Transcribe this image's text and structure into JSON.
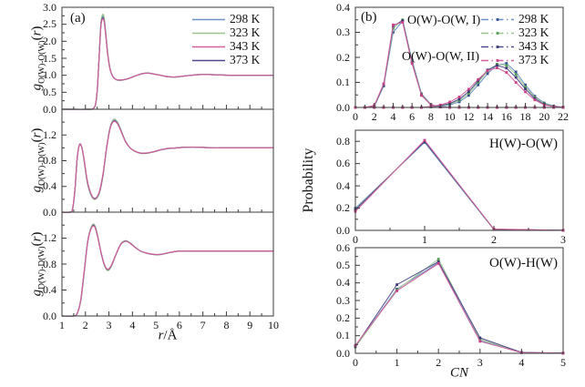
{
  "chart_data": [
    {
      "id": "a_top_gOO",
      "type": "line",
      "panel_label": "(a)",
      "ylabel": "g_O(W)-O(W)(r)",
      "ylabel_parts": {
        "sym": "g",
        "sub": "O(W)-O(W)",
        "open": "(",
        "var": "r",
        "close": ")"
      },
      "xlim": [
        1,
        10
      ],
      "frame_ylim": [
        0,
        3
      ],
      "x_ticks": [
        1,
        2,
        3,
        4,
        5,
        6,
        7,
        8,
        9,
        10
      ],
      "x_minor_step": 0.5,
      "x_ticks_labeled": false,
      "y_ticks": [
        "0.0",
        "0.5",
        "1.0",
        "1.5",
        "2.0",
        "2.5",
        "3.0"
      ],
      "y_minor_step": 0.25,
      "legend": {
        "entries": [
          {
            "label": "298 K",
            "color": "#6d94c4"
          },
          {
            "label": "323 K",
            "color": "#9cc48e"
          },
          {
            "label": "343 K",
            "color": "#d2609c"
          },
          {
            "label": "373 K",
            "color": "#4f4a8e"
          }
        ]
      },
      "overlapping_series": [
        "298 K",
        "323 K",
        "343 K",
        "373 K"
      ],
      "draw": [
        {
          "color": "#6d94c4",
          "amp": 0.05
        },
        {
          "color": "#9cc48e",
          "amp": 0.08
        },
        {
          "color": "#4f4a8e",
          "amp": 0.02
        },
        {
          "color": "#d2609c",
          "amp": 0
        }
      ],
      "x": [
        1.0,
        2.2,
        2.32,
        2.42,
        2.5,
        2.58,
        2.66,
        2.74,
        2.8,
        2.86,
        2.94,
        3.04,
        3.16,
        3.3,
        3.45,
        3.6,
        3.8,
        4.0,
        4.2,
        4.45,
        4.7,
        4.95,
        5.2,
        5.5,
        5.8,
        6.1,
        6.5,
        6.9,
        7.3,
        7.7,
        8.2,
        8.8,
        9.4,
        10
      ],
      "y": [
        0,
        0,
        0.02,
        0.12,
        0.55,
        1.5,
        2.45,
        2.66,
        2.55,
        2.2,
        1.65,
        1.2,
        0.97,
        0.88,
        0.86,
        0.87,
        0.9,
        0.95,
        1.0,
        1.05,
        1.06,
        1.03,
        1.0,
        0.96,
        0.95,
        0.97,
        1.0,
        1.02,
        1.02,
        1.01,
        1.0,
        1.0,
        1.0,
        1.0
      ]
    },
    {
      "id": "a_mid_gOD",
      "type": "line",
      "ylabel": "g_O(W)-D(W)(r)",
      "ylabel_parts": {
        "sym": "g",
        "sub": "O(W)-D(W)",
        "open": "(",
        "var": "r",
        "close": ")"
      },
      "xlim": [
        1,
        10
      ],
      "frame_ylim": [
        0,
        1.6
      ],
      "x_ticks": [
        1,
        2,
        3,
        4,
        5,
        6,
        7,
        8,
        9,
        10
      ],
      "x_minor_step": 0.5,
      "x_ticks_labeled": false,
      "y_ticks": [
        "0.0",
        "0.4",
        "0.8",
        "1.2"
      ],
      "y_minor_step": 0.2,
      "overlapping_series": [
        "298 K",
        "323 K",
        "343 K",
        "373 K"
      ],
      "draw": [
        {
          "color": "#6d94c4",
          "amp": 0.05
        },
        {
          "color": "#9cc48e",
          "amp": 0.08
        },
        {
          "color": "#4f4a8e",
          "amp": 0.02
        },
        {
          "color": "#d2609c",
          "amp": 0
        }
      ],
      "x": [
        1.0,
        1.35,
        1.45,
        1.55,
        1.65,
        1.75,
        1.85,
        1.95,
        2.05,
        2.15,
        2.3,
        2.45,
        2.6,
        2.75,
        2.9,
        3.05,
        3.2,
        3.35,
        3.5,
        3.7,
        3.9,
        4.1,
        4.35,
        4.6,
        4.9,
        5.2,
        5.5,
        5.9,
        6.3,
        6.8,
        7.4,
        8.0,
        8.8,
        9.4,
        10
      ],
      "y": [
        0,
        0,
        0.05,
        0.35,
        0.85,
        1.05,
        1.0,
        0.8,
        0.55,
        0.38,
        0.24,
        0.22,
        0.33,
        0.6,
        1.0,
        1.3,
        1.41,
        1.38,
        1.27,
        1.1,
        1.0,
        0.95,
        0.92,
        0.92,
        0.94,
        0.97,
        0.99,
        1.0,
        1.01,
        1.01,
        1.0,
        1.0,
        1.0,
        1.0,
        1.0
      ]
    },
    {
      "id": "a_bot_gDD",
      "type": "line",
      "ylabel": "g_D(W)-D(W)(r)",
      "ylabel_parts": {
        "sym": "g",
        "sub": "D(W)-D(W)",
        "open": "(",
        "var": "r",
        "close": ")"
      },
      "xlabel": "r/Å",
      "xlabel_var": "r",
      "xlabel_unit": "/Å",
      "xlim": [
        1,
        10
      ],
      "frame_ylim": [
        0,
        1.6
      ],
      "x_ticks": [
        1,
        2,
        3,
        4,
        5,
        6,
        7,
        8,
        9,
        10
      ],
      "x_minor_step": 0.5,
      "x_ticks_labeled": true,
      "y_ticks": [
        "0.0",
        "0.4",
        "0.8",
        "1.2"
      ],
      "y_minor_step": 0.2,
      "overlapping_series": [
        "298 K",
        "323 K",
        "343 K",
        "373 K"
      ],
      "draw": [
        {
          "color": "#6d94c4",
          "amp": 0.05
        },
        {
          "color": "#9cc48e",
          "amp": 0.08
        },
        {
          "color": "#4f4a8e",
          "amp": 0.02
        },
        {
          "color": "#d2609c",
          "amp": 0
        }
      ],
      "x": [
        1.0,
        1.5,
        1.65,
        1.8,
        1.95,
        2.1,
        2.25,
        2.38,
        2.5,
        2.65,
        2.8,
        2.95,
        3.1,
        3.3,
        3.5,
        3.7,
        3.9,
        4.1,
        4.35,
        4.6,
        4.9,
        5.2,
        5.6,
        6.0,
        6.5,
        7.0,
        7.6,
        8.2,
        9.0,
        10
      ],
      "y": [
        0,
        0,
        0.04,
        0.25,
        0.7,
        1.15,
        1.35,
        1.38,
        1.25,
        1.0,
        0.8,
        0.72,
        0.78,
        0.95,
        1.1,
        1.15,
        1.12,
        1.06,
        1.0,
        0.97,
        0.95,
        0.95,
        0.98,
        1.0,
        1.0,
        1.0,
        1.0,
        1.0,
        1.0,
        1.0
      ]
    },
    {
      "id": "b_top_CN_OO",
      "type": "line-markers",
      "panel_label": "(b)",
      "annotations": [
        "O(W)-O(W, I)",
        "O(W)-O(W, II)"
      ],
      "xlim": [
        0,
        22
      ],
      "frame_ylim": [
        0,
        0.4
      ],
      "x_ticks": [
        0,
        2,
        4,
        6,
        8,
        10,
        12,
        14,
        16,
        18,
        20,
        22
      ],
      "x_minor_step": 1,
      "x_ticks_labeled": true,
      "y_ticks": [
        "0.0",
        "0.1",
        "0.2",
        "0.3",
        "0.4"
      ],
      "y_minor_step": 0.05,
      "legend": {
        "entries": [
          {
            "label": "298 K",
            "color": "#6d94c4",
            "marker": "#31508f"
          },
          {
            "label": "323 K",
            "color": "#9cc48e",
            "marker": "#55a055"
          },
          {
            "label": "343 K",
            "color": "#4f4a8e",
            "marker": "#3c3875"
          },
          {
            "label": "373 K",
            "color": "#d2609c",
            "marker": "#cc3f86"
          }
        ]
      },
      "x_values": [
        0,
        1,
        2,
        3,
        4,
        5,
        6,
        7,
        8,
        9,
        10,
        11,
        12,
        13,
        14,
        15,
        16,
        17,
        18,
        19,
        20,
        21,
        22
      ],
      "series": [
        {
          "name": "298 K",
          "group": "O(W)-O(W, I)",
          "color": "#6d94c4",
          "marker": "#31508f",
          "y": [
            0,
            0,
            0.004,
            0.085,
            0.3,
            0.345,
            0.19,
            0.055,
            0.012,
            0.002,
            0,
            0,
            0,
            0,
            0,
            0,
            0,
            0,
            0,
            0,
            0,
            0,
            0
          ]
        },
        {
          "name": "323 K",
          "group": "O(W)-O(W, I)",
          "color": "#9cc48e",
          "marker": "#55a055",
          "y": [
            0,
            0,
            0.005,
            0.088,
            0.315,
            0.35,
            0.185,
            0.053,
            0.011,
            0.002,
            0,
            0,
            0,
            0,
            0,
            0,
            0,
            0,
            0,
            0,
            0,
            0,
            0
          ]
        },
        {
          "name": "343 K",
          "group": "O(W)-O(W, I)",
          "color": "#4f4a8e",
          "marker": "#3c3875",
          "y": [
            0,
            0,
            0.006,
            0.09,
            0.325,
            0.347,
            0.18,
            0.05,
            0.01,
            0.002,
            0,
            0,
            0,
            0,
            0,
            0,
            0,
            0,
            0,
            0,
            0,
            0,
            0
          ]
        },
        {
          "name": "373 K",
          "group": "O(W)-O(W, I)",
          "color": "#d2609c",
          "marker": "#cc3f86",
          "y": [
            0,
            0,
            0.008,
            0.095,
            0.33,
            0.34,
            0.175,
            0.048,
            0.01,
            0.002,
            0,
            0,
            0,
            0,
            0,
            0,
            0,
            0,
            0,
            0,
            0,
            0,
            0
          ]
        },
        {
          "name": "298 K",
          "group": "O(W)-O(W, II)",
          "color": "#6d94c4",
          "marker": "#31508f",
          "y": [
            0,
            0,
            0,
            0,
            0,
            0,
            0,
            0,
            0.002,
            0.004,
            0.01,
            0.022,
            0.048,
            0.09,
            0.135,
            0.17,
            0.176,
            0.142,
            0.09,
            0.045,
            0.018,
            0.006,
            0.001
          ]
        },
        {
          "name": "323 K",
          "group": "O(W)-O(W, II)",
          "color": "#9cc48e",
          "marker": "#55a055",
          "y": [
            0,
            0,
            0,
            0,
            0,
            0,
            0,
            0,
            0.002,
            0.005,
            0.013,
            0.028,
            0.056,
            0.1,
            0.145,
            0.173,
            0.168,
            0.132,
            0.082,
            0.04,
            0.015,
            0.005,
            0.001
          ]
        },
        {
          "name": "343 K",
          "group": "O(W)-O(W, II)",
          "color": "#4f4a8e",
          "marker": "#3c3875",
          "y": [
            0,
            0,
            0,
            0,
            0,
            0,
            0,
            0,
            0.003,
            0.007,
            0.016,
            0.033,
            0.063,
            0.106,
            0.15,
            0.168,
            0.157,
            0.12,
            0.074,
            0.035,
            0.012,
            0.004,
            0.001
          ]
        },
        {
          "name": "373 K",
          "group": "O(W)-O(W, II)",
          "color": "#d2609c",
          "marker": "#cc3f86",
          "y": [
            0,
            0,
            0,
            0,
            0,
            0,
            0,
            0,
            0.004,
            0.01,
            0.022,
            0.042,
            0.073,
            0.112,
            0.147,
            0.158,
            0.14,
            0.1,
            0.062,
            0.03,
            0.01,
            0.003,
            0.001
          ]
        }
      ]
    },
    {
      "id": "b_mid_CN_HO",
      "type": "line-markers",
      "ylabel": "Probability",
      "annotation": "H(W)-O(W)",
      "xlim": [
        0,
        3
      ],
      "frame_ylim": [
        0,
        0.9
      ],
      "x_ticks": [
        0,
        1,
        2,
        3
      ],
      "x_minor_step": 0.5,
      "x_ticks_labeled": true,
      "y_ticks": [
        "0.0",
        "0.2",
        "0.4",
        "0.6",
        "0.8"
      ],
      "y_minor_step": 0.1,
      "x_values": [
        0,
        1,
        2,
        3
      ],
      "series": [
        {
          "name": "298 K",
          "color": "#6d94c4",
          "marker": "#31508f",
          "y": [
            0.2,
            0.79,
            0.008,
            0.001
          ]
        },
        {
          "name": "323 K",
          "color": "#9cc48e",
          "marker": "#55a055",
          "y": [
            0.19,
            0.8,
            0.008,
            0.001
          ]
        },
        {
          "name": "343 K",
          "color": "#4f4a8e",
          "marker": "#3c3875",
          "y": [
            0.185,
            0.8,
            0.01,
            0.001
          ]
        },
        {
          "name": "373 K",
          "color": "#d2609c",
          "marker": "#cc3f86",
          "y": [
            0.17,
            0.81,
            0.012,
            0.001
          ]
        }
      ]
    },
    {
      "id": "b_bot_CN_OH",
      "type": "line-markers",
      "xlabel": "CN",
      "annotation": "O(W)-H(W)",
      "xlim": [
        0,
        5
      ],
      "frame_ylim": [
        0,
        0.6
      ],
      "x_ticks": [
        0,
        1,
        2,
        3,
        4,
        5
      ],
      "x_minor_step": 0.5,
      "x_ticks_labeled": true,
      "y_ticks": [
        "0.0",
        "0.1",
        "0.2",
        "0.3",
        "0.4",
        "0.5",
        "0.6"
      ],
      "y_minor_step": 0.05,
      "x_values": [
        0,
        1,
        2,
        3,
        4,
        5
      ],
      "series": [
        {
          "name": "298 K",
          "color": "#6d94c4",
          "marker": "#31508f",
          "y": [
            0.04,
            0.365,
            0.515,
            0.072,
            0.004,
            0.001
          ]
        },
        {
          "name": "323 K",
          "color": "#9cc48e",
          "marker": "#55a055",
          "y": [
            0.035,
            0.36,
            0.535,
            0.08,
            0.004,
            0.001
          ]
        },
        {
          "name": "343 K",
          "color": "#4f4a8e",
          "marker": "#3c3875",
          "y": [
            0.04,
            0.39,
            0.52,
            0.088,
            0.005,
            0.001
          ]
        },
        {
          "name": "373 K",
          "color": "#d2609c",
          "marker": "#cc3f86",
          "y": [
            0.045,
            0.355,
            0.51,
            0.068,
            0.004,
            0.001
          ]
        }
      ]
    }
  ]
}
